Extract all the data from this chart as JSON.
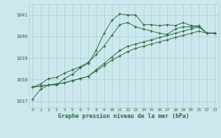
{
  "title": "Graphe pression niveau de la mer (hPa)",
  "bg_color": "#cce8ee",
  "grid_color": "#aaccd4",
  "line_color": "#2d6b3c",
  "xlim": [
    -0.5,
    23.5
  ],
  "ylim": [
    1036.7,
    1041.5
  ],
  "yticks": [
    1037,
    1038,
    1039,
    1040,
    1041
  ],
  "xticks": [
    0,
    1,
    2,
    3,
    4,
    5,
    6,
    7,
    8,
    9,
    10,
    11,
    12,
    13,
    14,
    15,
    16,
    17,
    18,
    19,
    20,
    21,
    22,
    23
  ],
  "series": [
    [
      1037.1,
      1037.55,
      1037.75,
      1037.75,
      1038.05,
      1038.25,
      1038.55,
      1038.75,
      1039.35,
      1040.15,
      1040.75,
      1041.05,
      1041.0,
      1041.0,
      1040.55,
      1040.55,
      1040.5,
      1040.55,
      1040.5,
      1040.65,
      1040.5,
      1040.5,
      1040.15,
      1040.15
    ],
    [
      1037.65,
      1037.8,
      1038.05,
      1038.1,
      1038.3,
      1038.45,
      1038.6,
      1038.8,
      1039.15,
      1039.55,
      1040.05,
      1040.55,
      1040.65,
      1040.45,
      1040.35,
      1040.25,
      1040.15,
      1040.1,
      1040.35,
      1040.45,
      1040.45,
      1040.45,
      1040.15,
      1040.15
    ],
    [
      1037.65,
      1037.7,
      1037.75,
      1037.8,
      1037.85,
      1037.95,
      1038.05,
      1038.15,
      1038.45,
      1038.75,
      1039.05,
      1039.35,
      1039.55,
      1039.65,
      1039.75,
      1039.85,
      1039.95,
      1040.05,
      1040.15,
      1040.25,
      1040.35,
      1040.45,
      1040.15,
      1040.15
    ],
    [
      1037.65,
      1037.7,
      1037.75,
      1037.8,
      1037.85,
      1037.95,
      1038.05,
      1038.15,
      1038.4,
      1038.65,
      1038.9,
      1039.1,
      1039.3,
      1039.45,
      1039.55,
      1039.65,
      1039.75,
      1039.85,
      1039.95,
      1040.05,
      1040.15,
      1040.25,
      1040.15,
      1040.15
    ]
  ]
}
